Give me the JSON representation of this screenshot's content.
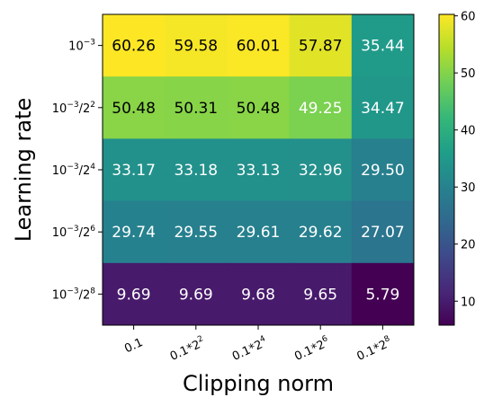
{
  "chart_data": {
    "type": "heatmap",
    "xlabel": "Clipping norm",
    "ylabel": "Learning rate",
    "x_categories": [
      {
        "base": "0.1",
        "sup": ""
      },
      {
        "base": "0.1*2",
        "sup": "2"
      },
      {
        "base": "0.1*2",
        "sup": "4"
      },
      {
        "base": "0.1*2",
        "sup": "6"
      },
      {
        "base": "0.1*2",
        "sup": "8"
      }
    ],
    "y_categories": [
      {
        "base": "10",
        "sup": "−3",
        "suffix": "",
        "sup2": ""
      },
      {
        "base": "10",
        "sup": "−3",
        "suffix": "/2",
        "sup2": "2"
      },
      {
        "base": "10",
        "sup": "−3",
        "suffix": "/2",
        "sup2": "4"
      },
      {
        "base": "10",
        "sup": "−3",
        "suffix": "/2",
        "sup2": "6"
      },
      {
        "base": "10",
        "sup": "−3",
        "suffix": "/2",
        "sup2": "8"
      }
    ],
    "values": [
      [
        60.26,
        59.58,
        60.01,
        57.87,
        35.44
      ],
      [
        50.48,
        50.31,
        50.48,
        49.25,
        34.47
      ],
      [
        33.17,
        33.18,
        33.13,
        32.96,
        29.5
      ],
      [
        29.74,
        29.55,
        29.61,
        29.62,
        27.07
      ],
      [
        9.69,
        9.69,
        9.68,
        9.65,
        5.79
      ]
    ],
    "value_labels": [
      [
        "60.26",
        "59.58",
        "60.01",
        "57.87",
        "35.44"
      ],
      [
        "50.48",
        "50.31",
        "50.48",
        "49.25",
        "34.47"
      ],
      [
        "33.17",
        "33.18",
        "33.13",
        "32.96",
        "29.50"
      ],
      [
        "29.74",
        "29.55",
        "29.61",
        "29.62",
        "27.07"
      ],
      [
        "9.69",
        "9.69",
        "9.68",
        "9.65",
        "5.79"
      ]
    ],
    "colormap": "viridis",
    "vmin": 5.79,
    "vmax": 60.26,
    "colorbar_ticks": [
      10,
      20,
      30,
      40,
      50,
      60
    ],
    "colorbar_tick_labels": [
      "10",
      "20",
      "30",
      "40",
      "50",
      "60"
    ],
    "text_color_light": "#ffffff",
    "text_color_dark": "#000000",
    "light_text_threshold": 50
  }
}
